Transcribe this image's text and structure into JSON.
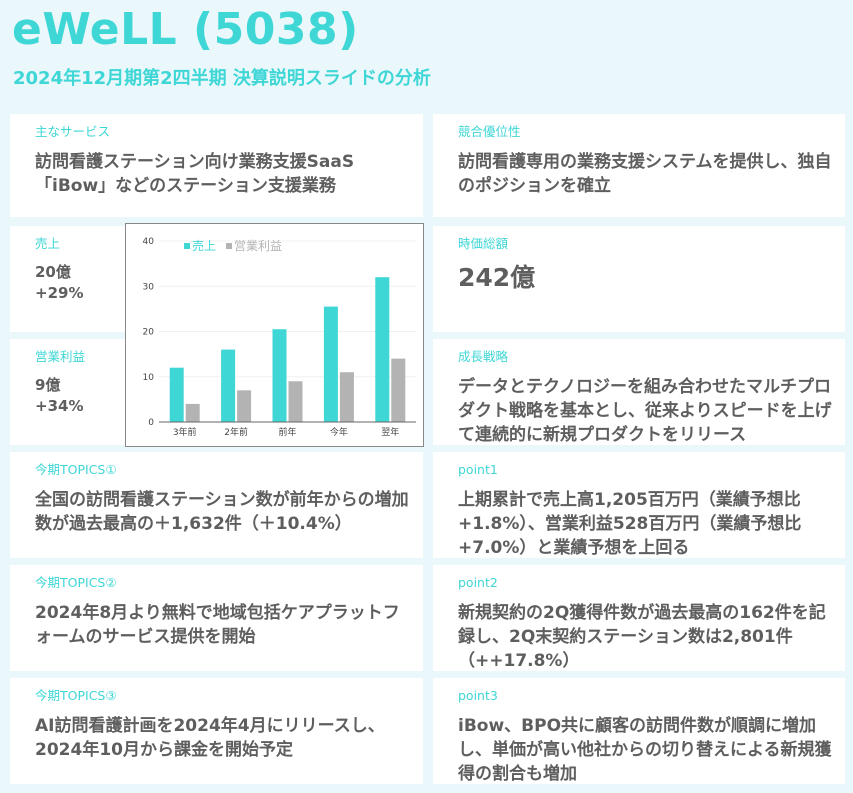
{
  "header": {
    "title": "eWeLL (5038)",
    "subtitle": "2024年12月期第2四半期 決算説明スライドの分析"
  },
  "colors": {
    "accent": "#3fd6d6",
    "text": "#5e5e5e",
    "background": "#eaf8fc",
    "card": "#ffffff",
    "bar_gray": "#b3b3b3"
  },
  "cards": {
    "service": {
      "label": "主なサービス",
      "body": "訪問看護ステーション向け業務支援SaaS「iBow」などのステーション支援業務"
    },
    "advantage": {
      "label": "競合優位性",
      "body": "訪問看護専用の業務支援システムを提供し、独自のポジションを確立"
    },
    "sales": {
      "label": "売上",
      "value": "20億",
      "growth": "+29%"
    },
    "op_profit": {
      "label": "営業利益",
      "value": "9億",
      "growth": "+34%"
    },
    "market_cap": {
      "label": "時価総額",
      "value": "242億"
    },
    "strategy": {
      "label": "成長戦略",
      "body": "データとテクノロジーを組み合わせたマルチプロダクト戦略を基本とし、従来よりスピードを上げて連続的に新規プロダクトをリリース"
    },
    "topic1": {
      "label": "今期TOPICS①",
      "body": "全国の訪問看護ステーション数が前年からの増加数が過去最高の＋1,632件（＋10.4%）"
    },
    "topic2": {
      "label": "今期TOPICS②",
      "body": "2024年8月より無料で地域包括ケアプラットフォームのサービス提供を開始"
    },
    "topic3": {
      "label": "今期TOPICS③",
      "body": "AI訪問看護計画を2024年4月にリリースし、2024年10月から課金を開始予定"
    },
    "point1": {
      "label": "point1",
      "body": "上期累計で売上高1,205百万円（業績予想比+1.8%）、営業利益528百万円（業績予想比+7.0%）と業績予想を上回る"
    },
    "point2": {
      "label": "point2",
      "body": "新規契約の2Q獲得件数が過去最高の162件を記録し、2Q末契約ステーション数は2,801件（++17.8%）"
    },
    "point3": {
      "label": "point3",
      "body": "iBow、BPO共に顧客の訪問件数が順調に増加し、単価が高い他社からの切り替えによる新規獲得の割合も増加"
    }
  },
  "chart_data": {
    "type": "bar",
    "title": "",
    "categories": [
      "3年前",
      "2年前",
      "前年",
      "今年",
      "翌年"
    ],
    "series": [
      {
        "name": "売上",
        "color": "#3fd6d6",
        "values": [
          12,
          16,
          20.5,
          25.5,
          32
        ]
      },
      {
        "name": "営業利益",
        "color": "#b3b3b3",
        "values": [
          4,
          7,
          9,
          11,
          14
        ]
      }
    ],
    "xlabel": "",
    "ylabel": "",
    "ylim": [
      0,
      40
    ],
    "yticks": [
      0,
      10,
      20,
      30,
      40
    ],
    "grid": true,
    "legend_position": "top-left"
  }
}
